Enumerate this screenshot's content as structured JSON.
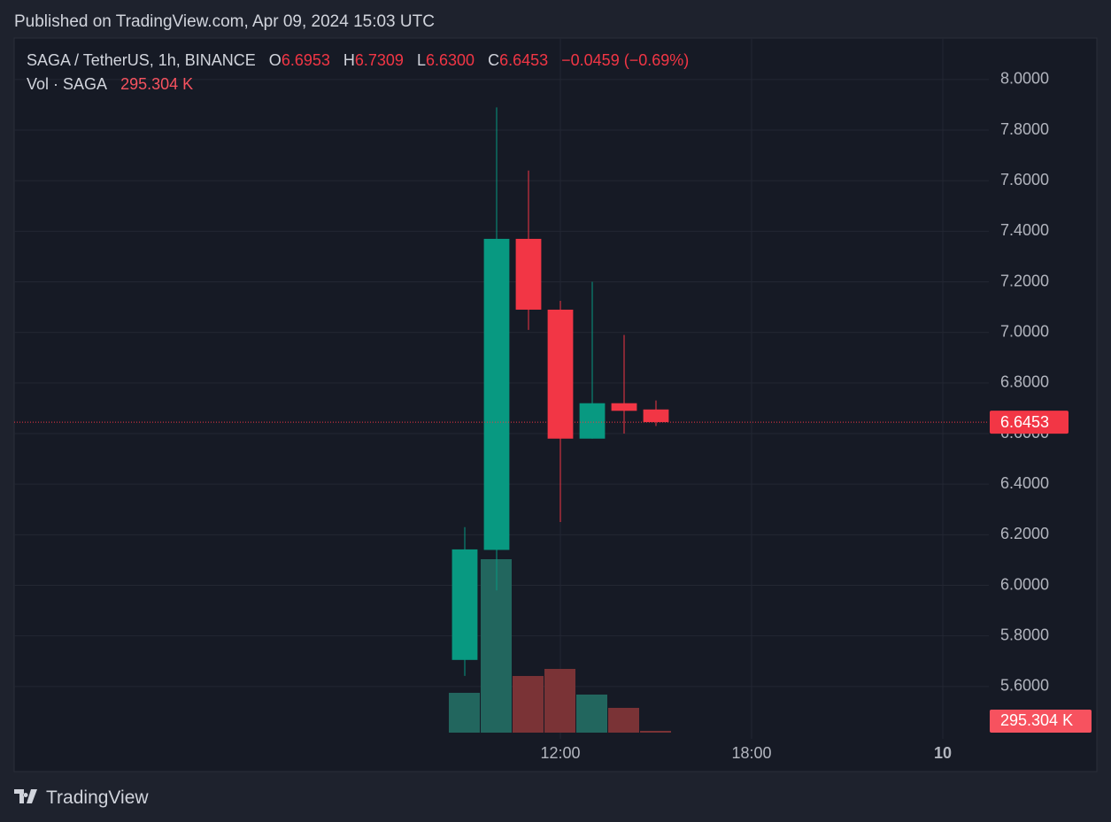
{
  "published": "Published on TradingView.com, Apr 09, 2024 15:03 UTC",
  "brand": "TradingView",
  "chart_data": {
    "type": "candlestick",
    "title": "SAGA / TetherUS, 1h, BINANCE",
    "header": {
      "o_key": "O",
      "o": "6.6953",
      "h_key": "H",
      "h": "6.7309",
      "l_key": "L",
      "l": "6.6300",
      "c_key": "C",
      "c": "6.6453",
      "change": "−0.0459 (−0.69%)"
    },
    "x": [
      9,
      10,
      11,
      12,
      13,
      14,
      15
    ],
    "open": [
      5.705,
      6.14,
      7.37,
      7.09,
      6.58,
      6.72,
      6.6953
    ],
    "high": [
      6.23,
      7.89,
      7.64,
      7.125,
      7.2,
      6.99,
      6.7309
    ],
    "low": [
      5.642,
      5.98,
      7.01,
      6.25,
      6.58,
      6.6,
      6.63
    ],
    "close": [
      6.142,
      7.37,
      7.09,
      6.58,
      6.72,
      6.69,
      6.6453
    ],
    "volume_name": "Vol · SAGA",
    "volume": [
      6640000,
      28930000,
      9450000,
      10630000,
      6350000,
      4130000,
      295304
    ],
    "volume_label": "295.304 K",
    "up_color": "#089981",
    "down_color": "#f23645",
    "xlim": [
      -5.139,
      25.444
    ],
    "xticks": [
      {
        "value": 12,
        "label": "12:00"
      },
      {
        "value": 18,
        "label": "18:00"
      },
      {
        "value": 24,
        "label": "10"
      }
    ],
    "ylim": [
      5.393,
      8.164
    ],
    "yticks": [
      {
        "value": 5.6,
        "label": "5.6000"
      },
      {
        "value": 5.8,
        "label": "5.8000"
      },
      {
        "value": 6.0,
        "label": "6.0000"
      },
      {
        "value": 6.2,
        "label": "6.2000"
      },
      {
        "value": 6.4,
        "label": "6.4000"
      },
      {
        "value": 6.6,
        "label": "6.6000"
      },
      {
        "value": 6.8,
        "label": "6.8000"
      },
      {
        "value": 7.0,
        "label": "7.0000"
      },
      {
        "value": 7.2,
        "label": "7.2000"
      },
      {
        "value": 7.4,
        "label": "7.4000"
      },
      {
        "value": 7.6,
        "label": "7.6000"
      },
      {
        "value": 7.8,
        "label": "7.8000"
      },
      {
        "value": 8.0,
        "label": "8.0000"
      }
    ],
    "grid": true
  }
}
